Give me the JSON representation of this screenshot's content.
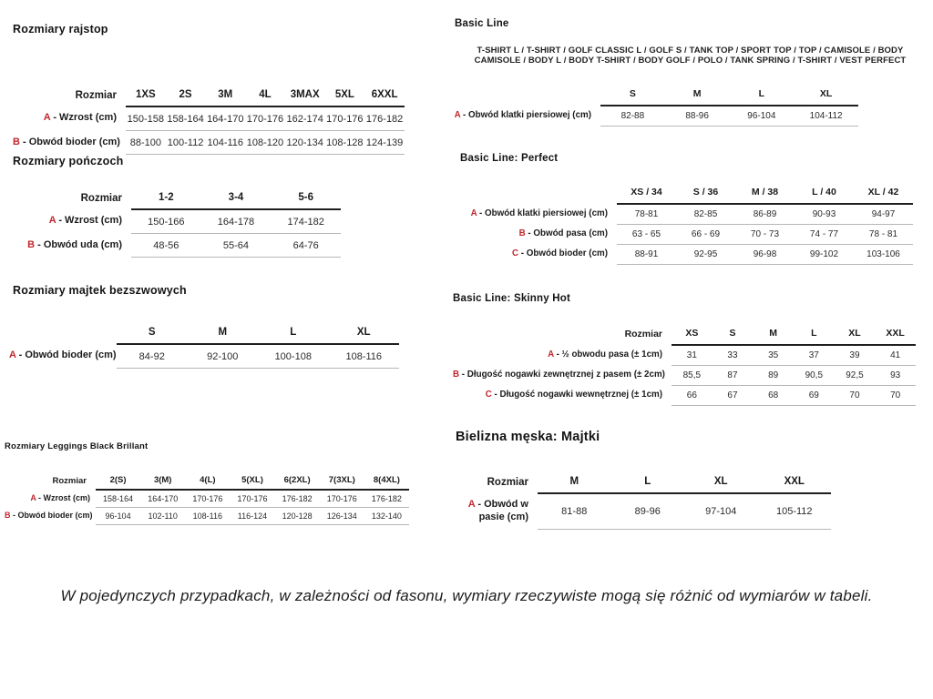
{
  "footer_note": "W pojedynczych przypadkach, w zależności od fasonu, wymiary rzeczywiste mogą się różnić od wymiarów w tabeli.",
  "colors": {
    "accent_red": "#c1272d",
    "text": "#1a1a1a",
    "rule_dark": "#1f1f1f",
    "rule_light": "#b6b6b6"
  },
  "tables": [
    {
      "id": "rozmiary-rajstop",
      "title": "Rozmiary rajstop",
      "header_label": "Rozmiar",
      "columns": [
        "1XS",
        "2S",
        "3M",
        "4L",
        "3MAX",
        "5XL",
        "6XXL"
      ],
      "rows": [
        {
          "letter": "A",
          "label": "Wzrost (cm)",
          "values": [
            "150-158",
            "158-164",
            "164-170",
            "170-176",
            "162-174",
            "170-176",
            "176-182"
          ]
        },
        {
          "letter": "B",
          "label": "Obwód bioder (cm)",
          "values": [
            "88-100",
            "100-112",
            "104-116",
            "108-120",
            "120-134",
            "108-128",
            "124-139"
          ]
        }
      ]
    },
    {
      "id": "rozmiary-ponczoch",
      "title": "Rozmiary pończoch",
      "header_label": "Rozmiar",
      "columns": [
        "1-2",
        "3-4",
        "5-6"
      ],
      "rows": [
        {
          "letter": "A",
          "label": "Wzrost (cm)",
          "values": [
            "150-166",
            "164-178",
            "174-182"
          ]
        },
        {
          "letter": "B",
          "label": "Obwód uda (cm)",
          "values": [
            "48-56",
            "55-64",
            "64-76"
          ]
        }
      ]
    },
    {
      "id": "rozmiary-majtek-bezszwowych",
      "title": "Rozmiary majtek bezszwowych",
      "header_label": "",
      "columns": [
        "S",
        "M",
        "L",
        "XL"
      ],
      "rows": [
        {
          "letter": "A",
          "label": "Obwód bioder (cm)",
          "values": [
            "84-92",
            "92-100",
            "100-108",
            "108-116"
          ]
        }
      ]
    },
    {
      "id": "rozmiary-leggings-black-brillant",
      "title": "Rozmiary Leggings Black Brillant",
      "header_label": "Rozmiar",
      "columns": [
        "2(S)",
        "3(M)",
        "4(L)",
        "5(XL)",
        "6(2XL)",
        "7(3XL)",
        "8(4XL)"
      ],
      "rows": [
        {
          "letter": "A",
          "label": "Wzrost (cm)",
          "values": [
            "158-164",
            "164-170",
            "170-176",
            "170-176",
            "176-182",
            "170-176",
            "176-182"
          ]
        },
        {
          "letter": "B",
          "label": "Obwód bioder (cm)",
          "values": [
            "96-104",
            "102-110",
            "108-116",
            "116-124",
            "120-128",
            "126-134",
            "132-140"
          ]
        }
      ]
    },
    {
      "id": "basic-line",
      "title": "Basic Line",
      "note": "T-SHIRT L / T-SHIRT / GOLF CLASSIC L / GOLF S / TANK TOP / SPORT TOP / TOP / CAMISOLE / BODY CAMISOLE / BODY L / BODY T-SHIRT / BODY GOLF / POLO / TANK SPRING / T-SHIRT / VEST PERFECT",
      "header_label": "",
      "columns": [
        "S",
        "M",
        "L",
        "XL"
      ],
      "rows": [
        {
          "letter": "A",
          "label": "Obwód klatki piersiowej (cm)",
          "values": [
            "82-88",
            "88-96",
            "96-104",
            "104-112"
          ]
        }
      ]
    },
    {
      "id": "basic-line-perfect",
      "title": "Basic Line: Perfect",
      "header_label": "",
      "columns": [
        "XS / 34",
        "S / 36",
        "M / 38",
        "L / 40",
        "XL / 42"
      ],
      "rows": [
        {
          "letter": "A",
          "label": "Obwód klatki piersiowej (cm)",
          "values": [
            "78-81",
            "82-85",
            "86-89",
            "90-93",
            "94-97"
          ]
        },
        {
          "letter": "B",
          "label": "Obwód pasa (cm)",
          "values": [
            "63 - 65",
            "66 - 69",
            "70 - 73",
            "74 - 77",
            "78 - 81"
          ]
        },
        {
          "letter": "C",
          "label": "Obwód bioder (cm)",
          "values": [
            "88-91",
            "92-95",
            "96-98",
            "99-102",
            "103-106"
          ]
        }
      ]
    },
    {
      "id": "basic-line-skinny-hot",
      "title": "Basic Line: Skinny Hot",
      "header_label": "Rozmiar",
      "columns": [
        "XS",
        "S",
        "M",
        "L",
        "XL",
        "XXL"
      ],
      "rows": [
        {
          "letter": "A",
          "label": "½ obwodu pasa (± 1cm)",
          "values": [
            "31",
            "33",
            "35",
            "37",
            "39",
            "41"
          ]
        },
        {
          "letter": "B",
          "label": "Długość nogawki zewnętrznej z pasem (± 2cm)",
          "values": [
            "85,5",
            "87",
            "89",
            "90,5",
            "92,5",
            "93"
          ]
        },
        {
          "letter": "C",
          "label": "Długość nogawki wewnętrznej (± 1cm)",
          "values": [
            "66",
            "67",
            "68",
            "69",
            "70",
            "70"
          ]
        }
      ]
    },
    {
      "id": "bielizna-meska-majtki",
      "title": "Bielizna męska: Majtki",
      "header_label": "Rozmiar",
      "columns": [
        "M",
        "L",
        "XL",
        "XXL"
      ],
      "rows": [
        {
          "letter": "A",
          "label": "Obwód w pasie (cm)",
          "values": [
            "81-88",
            "89-96",
            "97-104",
            "105-112"
          ]
        }
      ]
    }
  ]
}
